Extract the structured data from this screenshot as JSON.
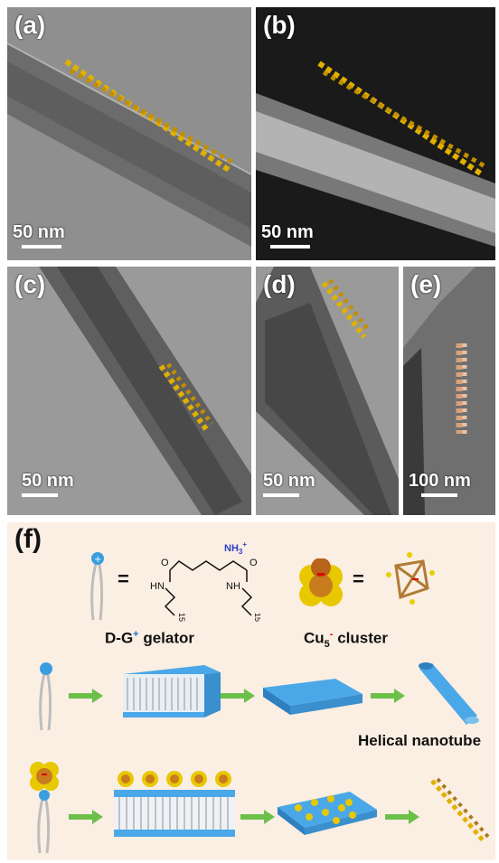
{
  "panels": {
    "a": {
      "label": "(a)",
      "scale": "50 nm"
    },
    "b": {
      "label": "(b)",
      "scale": "50 nm"
    },
    "c": {
      "label": "(c)",
      "scale": "50 nm"
    },
    "d": {
      "label": "(d)",
      "scale": "50 nm"
    },
    "e": {
      "label": "(e)",
      "scale": "100 nm"
    }
  },
  "scheme": {
    "label": "(f)",
    "equals": "=",
    "gelator": {
      "name": "D-G",
      "charge": "+",
      "suffix": " gelator"
    },
    "cluster": {
      "name": "Cu",
      "sub": "5",
      "charge": "-",
      "suffix": " cluster"
    },
    "chem": {
      "nh3": "NH",
      "nh3_sub": "3",
      "nh3_sup": "+",
      "o": "O",
      "hn": "HN",
      "nh": "NH",
      "n15": "15"
    },
    "helical_label": "Helical nanotube"
  },
  "colors": {
    "gold": "#d8a200",
    "blue": "#3a9de0",
    "bg_scheme": "#fbeee3",
    "arrow": "#6cc04a"
  }
}
